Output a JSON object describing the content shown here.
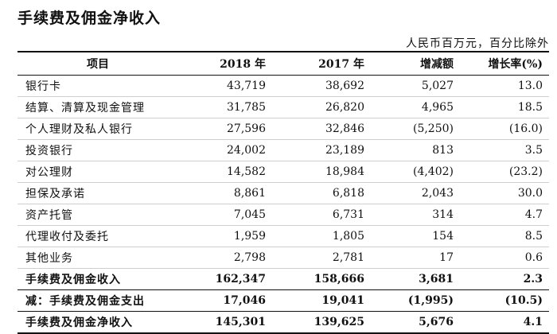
{
  "title": "手续费及佣金净收入",
  "unit_note": "人民币百万元，百分比除外",
  "columns": [
    "项目",
    "2018 年",
    "2017 年",
    "增减额",
    "增长率(%)"
  ],
  "rows": [
    {
      "item": "银行卡",
      "y2018": "43,719",
      "y2017": "38,692",
      "change": "5,027",
      "growth": "13.0"
    },
    {
      "item": "结算、清算及现金管理",
      "y2018": "31,785",
      "y2017": "26,820",
      "change": "4,965",
      "growth": "18.5"
    },
    {
      "item": "个人理财及私人银行",
      "y2018": "27,596",
      "y2017": "32,846",
      "change": "(5,250)",
      "growth": "(16.0)"
    },
    {
      "item": "投资银行",
      "y2018": "24,002",
      "y2017": "23,189",
      "change": "813",
      "growth": "3.5"
    },
    {
      "item": "对公理财",
      "y2018": "14,582",
      "y2017": "18,984",
      "change": "(4,402)",
      "growth": "(23.2)"
    },
    {
      "item": "担保及承诺",
      "y2018": "8,861",
      "y2017": "6,818",
      "change": "2,043",
      "growth": "30.0"
    },
    {
      "item": "资产托管",
      "y2018": "7,045",
      "y2017": "6,731",
      "change": "314",
      "growth": "4.7"
    },
    {
      "item": "代理收付及委托",
      "y2018": "1,959",
      "y2017": "1,805",
      "change": "154",
      "growth": "8.5"
    },
    {
      "item": "其他业务",
      "y2018": "2,798",
      "y2017": "2,781",
      "change": "17",
      "growth": "0.6"
    }
  ],
  "totals": [
    {
      "item": "手续费及佣金收入",
      "y2018": "162,347",
      "y2017": "158,666",
      "change": "3,681",
      "growth": "2.3"
    },
    {
      "item": "减：手续费及佣金支出",
      "y2018": "17,046",
      "y2017": "19,041",
      "change": "(1,995)",
      "growth": "(10.5)"
    },
    {
      "item": "手续费及佣金净收入",
      "y2018": "145,301",
      "y2017": "139,625",
      "change": "5,676",
      "growth": "4.1"
    }
  ]
}
